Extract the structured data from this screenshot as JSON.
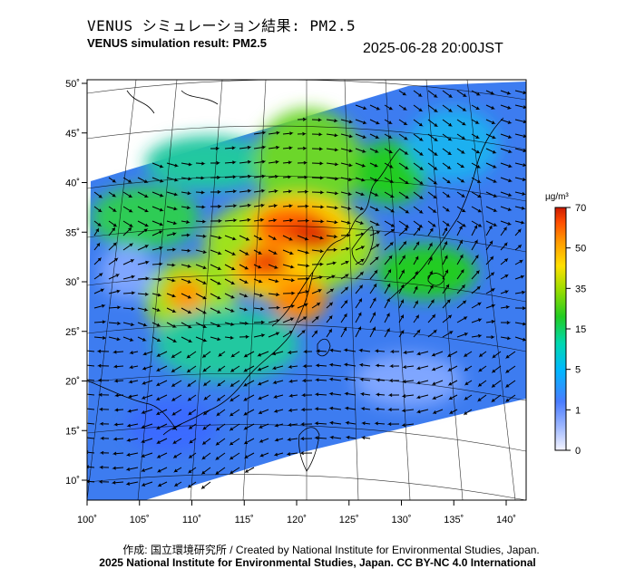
{
  "header": {
    "title_jp": "VENUS シミュレーション結果: PM2.5",
    "title_en": "VENUS simulation result: PM2.5",
    "timestamp": "2025-06-28 20:00JST"
  },
  "map": {
    "lat_ticks": [
      "50˚",
      "45˚",
      "40˚",
      "35˚",
      "30˚",
      "25˚",
      "20˚",
      "15˚",
      "10˚"
    ],
    "lon_ticks": [
      "100˚",
      "105˚",
      "110˚",
      "115˚",
      "120˚",
      "125˚",
      "130˚",
      "135˚",
      "140˚"
    ],
    "lat_values": [
      50,
      45,
      40,
      35,
      30,
      25,
      20,
      15,
      10
    ],
    "lon_values": [
      100,
      105,
      110,
      115,
      120,
      125,
      130,
      135,
      140
    ]
  },
  "colorbar": {
    "unit": "µg/m³",
    "ticks": [
      "70",
      "50",
      "35",
      "15",
      "5",
      "1",
      "0"
    ],
    "colors": [
      "#cc1a00",
      "#ff4d00",
      "#ff9900",
      "#ffe000",
      "#99dd00",
      "#22cc22",
      "#00d8b0",
      "#00b8ff",
      "#2a6bff",
      "#5a8cff",
      "#9cb6ff",
      "#e8ecff"
    ]
  },
  "footer": {
    "credit_line1": "作成: 国立環境研究所 / Created by National Institute for Environmental Studies, Japan.",
    "credit_line2": "2025 National Institute for Environmental Studies, Japan. CC BY-NC 4.0 International"
  }
}
